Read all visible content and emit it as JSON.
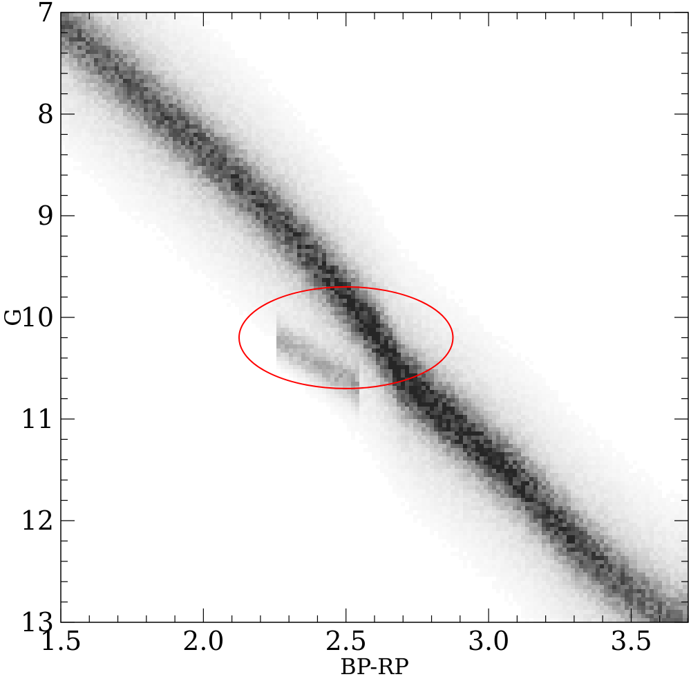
{
  "chart_data": {
    "type": "heatmap",
    "title": "",
    "xlabel": "BP-RP",
    "ylabel": "G",
    "xlim": [
      1.5,
      3.7
    ],
    "ylim": [
      13,
      7
    ],
    "y_inverted": true,
    "x_ticks": [
      1.5,
      2.0,
      2.5,
      3.0,
      3.5
    ],
    "x_tick_labels": [
      "1.5",
      "2.0",
      "2.5",
      "3.0",
      "3.5"
    ],
    "x_minor_step": 0.1,
    "y_ticks": [
      7,
      8,
      9,
      10,
      11,
      12,
      13
    ],
    "y_tick_labels": [
      "7",
      "8",
      "9",
      "10",
      "11",
      "12",
      "13"
    ],
    "y_minor_step": 0.2,
    "grid": false,
    "density_ridge": [
      {
        "x": 1.5,
        "y": 7.1,
        "density": 0.55
      },
      {
        "x": 1.8,
        "y": 7.85,
        "density": 0.65
      },
      {
        "x": 2.1,
        "y": 8.6,
        "density": 0.7
      },
      {
        "x": 2.3,
        "y": 9.15,
        "density": 0.72
      },
      {
        "x": 2.5,
        "y": 9.8,
        "density": 0.85
      },
      {
        "x": 2.6,
        "y": 10.15,
        "density": 0.95
      },
      {
        "x": 2.7,
        "y": 10.6,
        "density": 1.0
      },
      {
        "x": 2.9,
        "y": 11.1,
        "density": 0.9
      },
      {
        "x": 3.1,
        "y": 11.6,
        "density": 0.85
      },
      {
        "x": 3.3,
        "y": 12.2,
        "density": 0.75
      },
      {
        "x": 3.5,
        "y": 12.7,
        "density": 0.6
      },
      {
        "x": 3.65,
        "y": 13.0,
        "density": 0.5
      }
    ],
    "secondary_branch": [
      {
        "x": 2.25,
        "y": 10.2
      },
      {
        "x": 2.4,
        "y": 10.45
      },
      {
        "x": 2.55,
        "y": 10.7
      }
    ],
    "annotations": [
      {
        "type": "ellipse",
        "cx": 2.5,
        "cy": 10.2,
        "rx": 0.375,
        "ry": 0.5,
        "color": "#ff0000"
      }
    ]
  }
}
